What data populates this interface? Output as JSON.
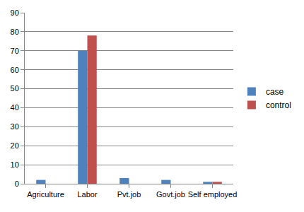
{
  "chart_data": {
    "type": "bar",
    "categories": [
      "Agriculture",
      "Labor",
      "Pvt.job",
      "Govt.job",
      "Self employed"
    ],
    "series": [
      {
        "name": "case",
        "color": "#4f81bd",
        "values": [
          2,
          70,
          3,
          2,
          1
        ]
      },
      {
        "name": "control",
        "color": "#c0504d",
        "values": [
          0,
          78,
          0,
          0,
          1
        ]
      }
    ],
    "ylim": [
      0,
      90
    ],
    "yticks": [
      0,
      10,
      20,
      30,
      40,
      50,
      60,
      70,
      80,
      90
    ],
    "grid": true,
    "legend": "right"
  }
}
